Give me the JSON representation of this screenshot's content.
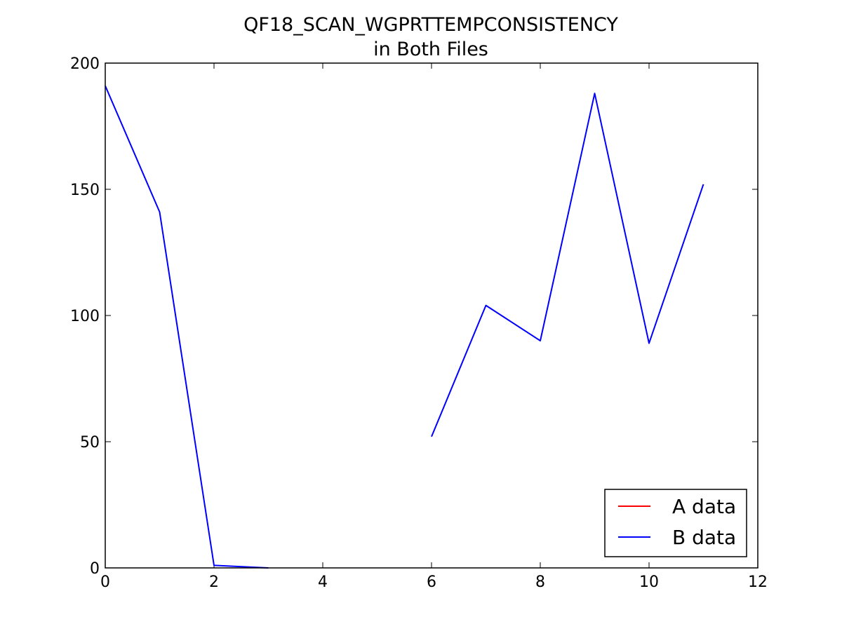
{
  "chart_data": {
    "type": "line",
    "title": [
      "QF18_SCAN_WGPRTTEMPCONSISTENCY",
      "in Both Files"
    ],
    "xlabel": "",
    "ylabel": "",
    "xlim": [
      0,
      12
    ],
    "ylim": [
      0,
      200
    ],
    "xticks": [
      0,
      2,
      4,
      6,
      8,
      10,
      12
    ],
    "yticks": [
      0,
      50,
      100,
      150,
      200
    ],
    "legend_position": "lower-right",
    "series": [
      {
        "name": "A data",
        "color": "#ff0000",
        "points": []
      },
      {
        "name": "B data",
        "color": "#0000ff",
        "points": [
          [
            0,
            191
          ],
          [
            1,
            141
          ],
          [
            2,
            1
          ],
          [
            3,
            0
          ],
          null,
          [
            6,
            52
          ],
          [
            7,
            104
          ],
          [
            8,
            90
          ],
          [
            9,
            188
          ],
          [
            10,
            89
          ],
          [
            11,
            152
          ]
        ]
      }
    ]
  }
}
